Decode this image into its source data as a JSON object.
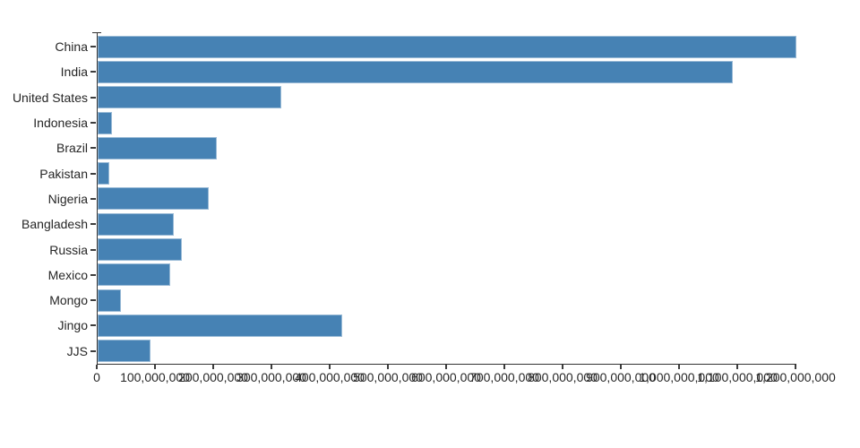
{
  "chart_data": {
    "type": "bar",
    "orientation": "horizontal",
    "title": "",
    "xlabel": "",
    "ylabel": "",
    "grid": false,
    "legend": false,
    "categories": [
      "China",
      "India",
      "United States",
      "Indonesia",
      "Brazil",
      "Pakistan",
      "Nigeria",
      "Bangladesh",
      "Russia",
      "Mexico",
      "Mongo",
      "Jingo",
      "JJS"
    ],
    "values": [
      1200000000,
      1090000000,
      315000000,
      25000000,
      205000000,
      20000000,
      190000000,
      130000000,
      145000000,
      125000000,
      40000000,
      420000000,
      90000000
    ],
    "xlim": [
      0,
      1200000000
    ],
    "x_ticks": [
      0,
      100000000,
      200000000,
      300000000,
      400000000,
      500000000,
      600000000,
      700000000,
      800000000,
      900000000,
      1000000000,
      1100000000,
      1200000000
    ],
    "x_tick_labels": [
      "0",
      "100,000,000",
      "200,000,000",
      "300,000,000",
      "400,000,000",
      "500,000,000",
      "600,000,000",
      "700,000,000",
      "800,000,000",
      "900,000,000",
      "1,000,000,000",
      "1,100,000,000",
      "1,200,000,000"
    ],
    "bar_color": "#4682b4",
    "axis_color": "#333333",
    "tick_color": "#3d3d3d",
    "label_color": "#262626"
  }
}
